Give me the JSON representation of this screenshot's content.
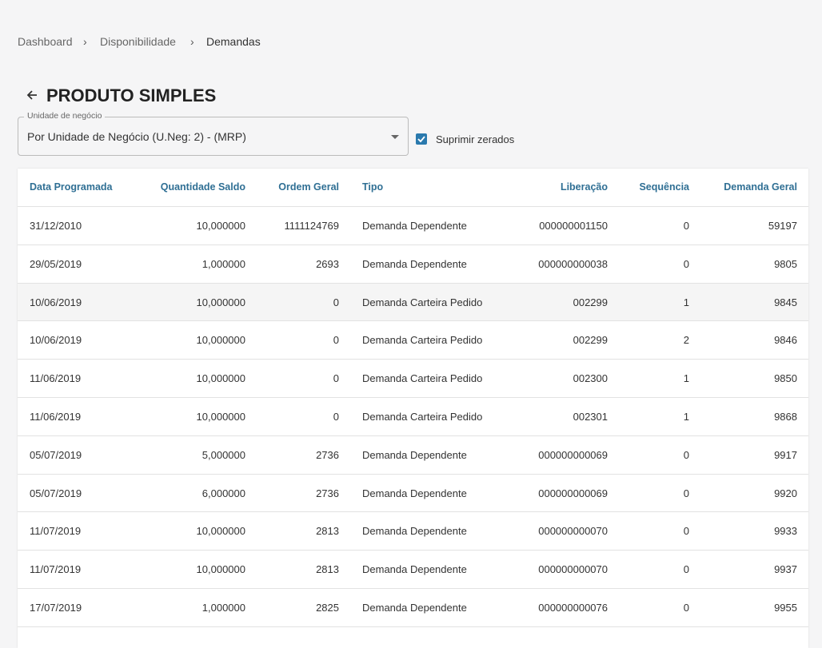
{
  "breadcrumb": [
    "Dashboard",
    "Disponibilidade",
    "Demandas"
  ],
  "title": "PRODUTO SIMPLES",
  "select": {
    "label": "Unidade de negócio",
    "value": "Por Unidade de Negócio (U.Neg: 2) - (MRP)"
  },
  "checkbox": {
    "label": "Suprimir zerados",
    "checked": true
  },
  "table": {
    "columns": [
      "Data Programada",
      "Quantidade Saldo",
      "Ordem Geral",
      "Tipo",
      "Liberação",
      "Sequência",
      "Demanda Geral"
    ],
    "rows": [
      [
        "31/12/2010",
        "10,000000",
        "1111124769",
        "Demanda Dependente",
        "000000001150",
        "0",
        "59197"
      ],
      [
        "29/05/2019",
        "1,000000",
        "2693",
        "Demanda Dependente",
        "000000000038",
        "0",
        "9805"
      ],
      [
        "10/06/2019",
        "10,000000",
        "0",
        "Demanda Carteira Pedido",
        "002299",
        "1",
        "9845"
      ],
      [
        "10/06/2019",
        "10,000000",
        "0",
        "Demanda Carteira Pedido",
        "002299",
        "2",
        "9846"
      ],
      [
        "11/06/2019",
        "10,000000",
        "0",
        "Demanda Carteira Pedido",
        "002300",
        "1",
        "9850"
      ],
      [
        "11/06/2019",
        "10,000000",
        "0",
        "Demanda Carteira Pedido",
        "002301",
        "1",
        "9868"
      ],
      [
        "05/07/2019",
        "5,000000",
        "2736",
        "Demanda Dependente",
        "000000000069",
        "0",
        "9917"
      ],
      [
        "05/07/2019",
        "6,000000",
        "2736",
        "Demanda Dependente",
        "000000000069",
        "0",
        "9920"
      ],
      [
        "11/07/2019",
        "10,000000",
        "2813",
        "Demanda Dependente",
        "000000000070",
        "0",
        "9933"
      ],
      [
        "11/07/2019",
        "10,000000",
        "2813",
        "Demanda Dependente",
        "000000000070",
        "0",
        "9937"
      ],
      [
        "17/07/2019",
        "1,000000",
        "2825",
        "Demanda Dependente",
        "000000000076",
        "0",
        "9955"
      ]
    ]
  }
}
